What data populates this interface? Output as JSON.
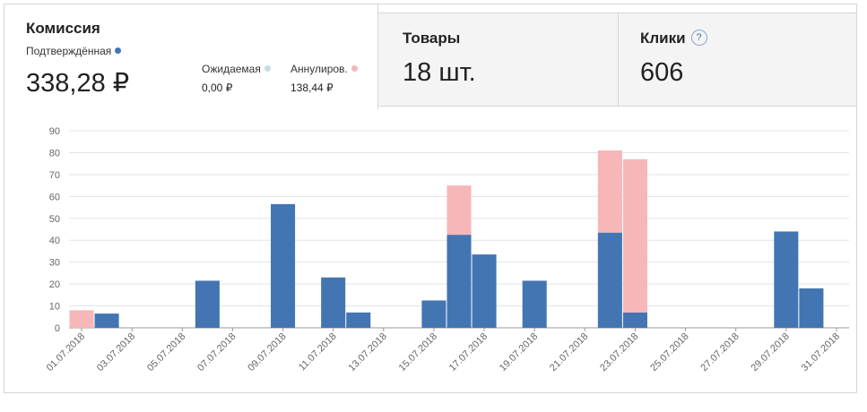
{
  "commission": {
    "title": "Комиссия",
    "confirmed_label": "Подтверждённая",
    "confirmed_value": "338,28 ₽",
    "pending_label": "Ожидаемая",
    "pending_value": "0,00 ₽",
    "cancelled_label": "Аннулиров.",
    "cancelled_value": "138,44 ₽"
  },
  "goods": {
    "title": "Товары",
    "value": "18 шт."
  },
  "clicks": {
    "title": "Клики",
    "value": "606",
    "help": "?"
  },
  "colors": {
    "confirmed": "#4375b3",
    "pending": "#c8dce8",
    "cancelled": "#f7b6b8"
  },
  "chart_data": {
    "type": "bar",
    "stacked": true,
    "ylim": [
      0,
      90
    ],
    "yticks": [
      0,
      10,
      20,
      30,
      40,
      50,
      60,
      70,
      80,
      90
    ],
    "categories": [
      "01.07.2018",
      "02.07.2018",
      "03.07.2018",
      "04.07.2018",
      "05.07.2018",
      "06.07.2018",
      "07.07.2018",
      "08.07.2018",
      "09.07.2018",
      "10.07.2018",
      "11.07.2018",
      "12.07.2018",
      "13.07.2018",
      "14.07.2018",
      "15.07.2018",
      "16.07.2018",
      "17.07.2018",
      "18.07.2018",
      "19.07.2018",
      "20.07.2018",
      "21.07.2018",
      "22.07.2018",
      "23.07.2018",
      "24.07.2018",
      "25.07.2018",
      "26.07.2018",
      "27.07.2018",
      "28.07.2018",
      "29.07.2018",
      "30.07.2018",
      "31.07.2018"
    ],
    "xtick_labels": [
      "01.07.2018",
      "03.07.2018",
      "05.07.2018",
      "07.07.2018",
      "09.07.2018",
      "11.07.2018",
      "13.07.2018",
      "15.07.2018",
      "17.07.2018",
      "19.07.2018",
      "21.07.2018",
      "23.07.2018",
      "25.07.2018",
      "27.07.2018",
      "29.07.2018",
      "31.07.2018"
    ],
    "series": [
      {
        "name": "Подтверждённая",
        "values": [
          0,
          6.5,
          0,
          0,
          0,
          21.5,
          0,
          0,
          56.5,
          0,
          23,
          7,
          0,
          0,
          12.5,
          42.5,
          33.5,
          0,
          21.5,
          0,
          0,
          43.5,
          7,
          0,
          0,
          0,
          0,
          0,
          44,
          18,
          0
        ]
      },
      {
        "name": "Аннулиров.",
        "values": [
          8,
          0,
          0,
          0,
          0,
          0,
          0,
          0,
          0,
          0,
          0,
          0,
          0,
          0,
          0,
          22.5,
          0,
          0,
          0,
          0,
          0,
          37.5,
          70,
          0,
          0,
          0,
          0,
          0,
          0,
          0,
          0
        ]
      }
    ],
    "grid": true,
    "legend": "none"
  }
}
